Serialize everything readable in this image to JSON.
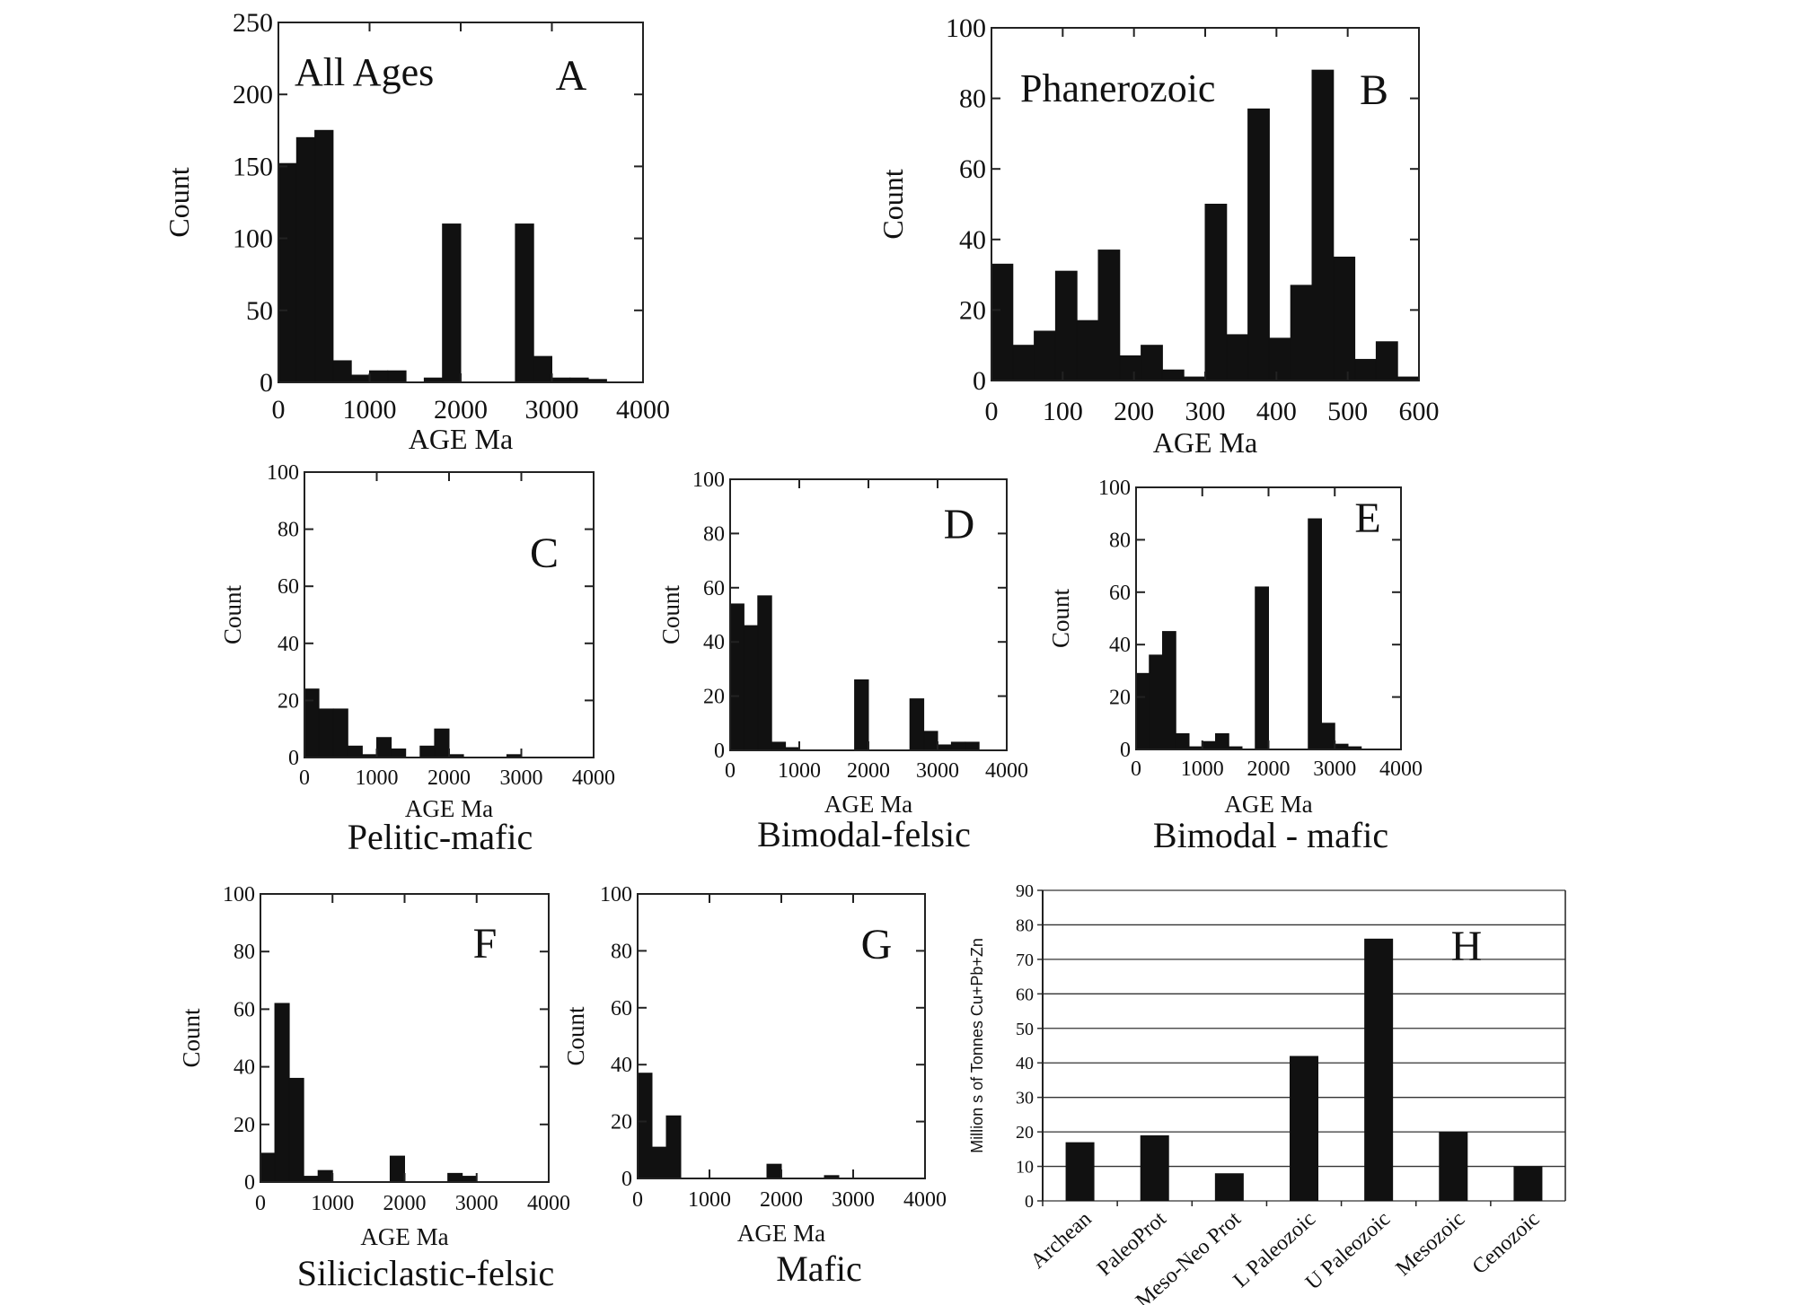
{
  "chart_data": [
    {
      "id": "A",
      "type": "bar",
      "panel_label": "A",
      "annotation": "All Ages",
      "caption": "",
      "xlabel": "AGE Ma",
      "ylabel": "Count",
      "xlim": [
        0,
        4000
      ],
      "ylim": [
        0,
        250
      ],
      "xticks": [
        0,
        1000,
        2000,
        3000,
        4000
      ],
      "yticks": [
        0,
        50,
        100,
        150,
        200,
        250
      ],
      "bin_width": 125,
      "bins": [
        {
          "x0": 0,
          "x1": 200,
          "value": 152
        },
        {
          "x0": 200,
          "x1": 400,
          "value": 170
        },
        {
          "x0": 400,
          "x1": 600,
          "value": 175
        },
        {
          "x0": 600,
          "x1": 800,
          "value": 15
        },
        {
          "x0": 800,
          "x1": 1000,
          "value": 5
        },
        {
          "x0": 1000,
          "x1": 1200,
          "value": 8
        },
        {
          "x0": 1200,
          "x1": 1400,
          "value": 8
        },
        {
          "x0": 1400,
          "x1": 1600,
          "value": 0
        },
        {
          "x0": 1600,
          "x1": 1800,
          "value": 3
        },
        {
          "x0": 1800,
          "x1": 2000,
          "value": 110
        },
        {
          "x0": 2000,
          "x1": 2200,
          "value": 0
        },
        {
          "x0": 2200,
          "x1": 2400,
          "value": 0
        },
        {
          "x0": 2400,
          "x1": 2600,
          "value": 0
        },
        {
          "x0": 2600,
          "x1": 2800,
          "value": 110
        },
        {
          "x0": 2800,
          "x1": 3000,
          "value": 18
        },
        {
          "x0": 3000,
          "x1": 3200,
          "value": 3
        },
        {
          "x0": 3200,
          "x1": 3400,
          "value": 3
        },
        {
          "x0": 3400,
          "x1": 3600,
          "value": 2
        }
      ]
    },
    {
      "id": "B",
      "type": "bar",
      "panel_label": "B",
      "annotation": "Phanerozoic",
      "caption": "",
      "xlabel": "AGE Ma",
      "ylabel": "Count",
      "xlim": [
        0,
        600
      ],
      "ylim": [
        0,
        100
      ],
      "xticks": [
        0,
        100,
        200,
        300,
        400,
        500,
        600
      ],
      "yticks": [
        0,
        20,
        40,
        60,
        80,
        100
      ],
      "bins": [
        {
          "x0": 0,
          "x1": 30,
          "value": 33
        },
        {
          "x0": 30,
          "x1": 60,
          "value": 10
        },
        {
          "x0": 60,
          "x1": 90,
          "value": 14
        },
        {
          "x0": 90,
          "x1": 120,
          "value": 31
        },
        {
          "x0": 120,
          "x1": 150,
          "value": 17
        },
        {
          "x0": 150,
          "x1": 180,
          "value": 37
        },
        {
          "x0": 180,
          "x1": 210,
          "value": 7
        },
        {
          "x0": 210,
          "x1": 240,
          "value": 10
        },
        {
          "x0": 240,
          "x1": 270,
          "value": 3
        },
        {
          "x0": 270,
          "x1": 300,
          "value": 1
        },
        {
          "x0": 300,
          "x1": 330,
          "value": 50
        },
        {
          "x0": 330,
          "x1": 360,
          "value": 13
        },
        {
          "x0": 360,
          "x1": 390,
          "value": 77
        },
        {
          "x0": 390,
          "x1": 420,
          "value": 12
        },
        {
          "x0": 420,
          "x1": 450,
          "value": 27
        },
        {
          "x0": 450,
          "x1": 480,
          "value": 88
        },
        {
          "x0": 480,
          "x1": 510,
          "value": 35
        },
        {
          "x0": 510,
          "x1": 540,
          "value": 6
        },
        {
          "x0": 540,
          "x1": 570,
          "value": 11
        },
        {
          "x0": 570,
          "x1": 600,
          "value": 1
        }
      ]
    },
    {
      "id": "C",
      "type": "bar",
      "panel_label": "C",
      "annotation": "",
      "caption": "Pelitic-mafic",
      "xlabel": "AGE Ma",
      "ylabel": "Count",
      "xlim": [
        0,
        4000
      ],
      "ylim": [
        0,
        100
      ],
      "xticks": [
        0,
        1000,
        2000,
        3000,
        4000
      ],
      "yticks": [
        0,
        20,
        40,
        60,
        80,
        100
      ],
      "bins": [
        {
          "x0": 0,
          "x1": 200,
          "value": 24
        },
        {
          "x0": 200,
          "x1": 400,
          "value": 17
        },
        {
          "x0": 400,
          "x1": 600,
          "value": 17
        },
        {
          "x0": 600,
          "x1": 800,
          "value": 4
        },
        {
          "x0": 800,
          "x1": 1000,
          "value": 1
        },
        {
          "x0": 1000,
          "x1": 1200,
          "value": 7
        },
        {
          "x0": 1200,
          "x1": 1400,
          "value": 3
        },
        {
          "x0": 1400,
          "x1": 1600,
          "value": 0
        },
        {
          "x0": 1600,
          "x1": 1800,
          "value": 4
        },
        {
          "x0": 1800,
          "x1": 2000,
          "value": 10
        },
        {
          "x0": 2000,
          "x1": 2200,
          "value": 1
        },
        {
          "x0": 2800,
          "x1": 3000,
          "value": 1
        }
      ]
    },
    {
      "id": "D",
      "type": "bar",
      "panel_label": "D",
      "annotation": "",
      "caption": "Bimodal-felsic",
      "xlabel": "AGE Ma",
      "ylabel": "Count",
      "xlim": [
        0,
        4000
      ],
      "ylim": [
        0,
        100
      ],
      "xticks": [
        0,
        1000,
        2000,
        3000,
        4000
      ],
      "yticks": [
        0,
        20,
        40,
        60,
        80,
        100
      ],
      "bins": [
        {
          "x0": 0,
          "x1": 200,
          "value": 54
        },
        {
          "x0": 200,
          "x1": 400,
          "value": 46
        },
        {
          "x0": 400,
          "x1": 600,
          "value": 57
        },
        {
          "x0": 600,
          "x1": 800,
          "value": 3
        },
        {
          "x0": 800,
          "x1": 1000,
          "value": 1
        },
        {
          "x0": 1800,
          "x1": 2000,
          "value": 26
        },
        {
          "x0": 2600,
          "x1": 2800,
          "value": 19
        },
        {
          "x0": 2800,
          "x1": 3000,
          "value": 7
        },
        {
          "x0": 3000,
          "x1": 3200,
          "value": 2
        },
        {
          "x0": 3200,
          "x1": 3400,
          "value": 3
        },
        {
          "x0": 3400,
          "x1": 3600,
          "value": 3
        }
      ]
    },
    {
      "id": "E",
      "type": "bar",
      "panel_label": "E",
      "annotation": "",
      "caption": "Bimodal - mafic",
      "xlabel": "AGE Ma",
      "ylabel": "Count",
      "xlim": [
        0,
        4000
      ],
      "ylim": [
        0,
        100
      ],
      "xticks": [
        0,
        1000,
        2000,
        3000,
        4000
      ],
      "yticks": [
        0,
        20,
        40,
        60,
        80,
        100
      ],
      "bins": [
        {
          "x0": 0,
          "x1": 200,
          "value": 29
        },
        {
          "x0": 200,
          "x1": 400,
          "value": 36
        },
        {
          "x0": 400,
          "x1": 600,
          "value": 45
        },
        {
          "x0": 600,
          "x1": 800,
          "value": 6
        },
        {
          "x0": 800,
          "x1": 1000,
          "value": 1
        },
        {
          "x0": 1000,
          "x1": 1200,
          "value": 3
        },
        {
          "x0": 1200,
          "x1": 1400,
          "value": 6
        },
        {
          "x0": 1400,
          "x1": 1600,
          "value": 1
        },
        {
          "x0": 1800,
          "x1": 2000,
          "value": 62
        },
        {
          "x0": 2600,
          "x1": 2800,
          "value": 88
        },
        {
          "x0": 2800,
          "x1": 3000,
          "value": 10
        },
        {
          "x0": 3000,
          "x1": 3200,
          "value": 2
        },
        {
          "x0": 3200,
          "x1": 3400,
          "value": 1
        }
      ]
    },
    {
      "id": "F",
      "type": "bar",
      "panel_label": "F",
      "annotation": "",
      "caption": "Siliciclastic-felsic",
      "xlabel": "AGE Ma",
      "ylabel": "Count",
      "xlim": [
        0,
        4000
      ],
      "ylim": [
        0,
        100
      ],
      "xticks": [
        0,
        1000,
        2000,
        3000,
        4000
      ],
      "yticks": [
        0,
        20,
        40,
        60,
        80,
        100
      ],
      "bins": [
        {
          "x0": 0,
          "x1": 200,
          "value": 10
        },
        {
          "x0": 200,
          "x1": 400,
          "value": 62
        },
        {
          "x0": 400,
          "x1": 600,
          "value": 36
        },
        {
          "x0": 600,
          "x1": 800,
          "value": 2
        },
        {
          "x0": 800,
          "x1": 1000,
          "value": 4
        },
        {
          "x0": 1800,
          "x1": 2000,
          "value": 9
        },
        {
          "x0": 2600,
          "x1": 2800,
          "value": 3
        },
        {
          "x0": 2800,
          "x1": 3000,
          "value": 2
        }
      ]
    },
    {
      "id": "G",
      "type": "bar",
      "panel_label": "G",
      "annotation": "",
      "caption": "Mafic",
      "xlabel": "AGE Ma",
      "ylabel": "Count",
      "xlim": [
        0,
        4000
      ],
      "ylim": [
        0,
        100
      ],
      "xticks": [
        0,
        1000,
        2000,
        3000,
        4000
      ],
      "yticks": [
        0,
        20,
        40,
        60,
        80,
        100
      ],
      "bins": [
        {
          "x0": 0,
          "x1": 200,
          "value": 37
        },
        {
          "x0": 200,
          "x1": 400,
          "value": 11
        },
        {
          "x0": 400,
          "x1": 600,
          "value": 22
        },
        {
          "x0": 1800,
          "x1": 2000,
          "value": 5
        },
        {
          "x0": 2600,
          "x1": 2800,
          "value": 1
        }
      ]
    },
    {
      "id": "H",
      "type": "bar",
      "panel_label": "H",
      "annotation": "",
      "caption": "",
      "xlabel": "",
      "ylabel": "Million s of Tonnes Cu+Pb+Zn",
      "ylim": [
        0,
        90
      ],
      "yticks": [
        0,
        10,
        20,
        30,
        40,
        50,
        60,
        70,
        80,
        90
      ],
      "grid": true,
      "categories": [
        "Archean",
        "PaleoProt",
        "Meso-Neo Prot",
        "L Paleozoic",
        "U Paleozoic",
        "Mesozoic",
        "Cenozoic"
      ],
      "values": [
        17,
        19,
        8,
        42,
        76,
        20,
        10
      ]
    }
  ]
}
